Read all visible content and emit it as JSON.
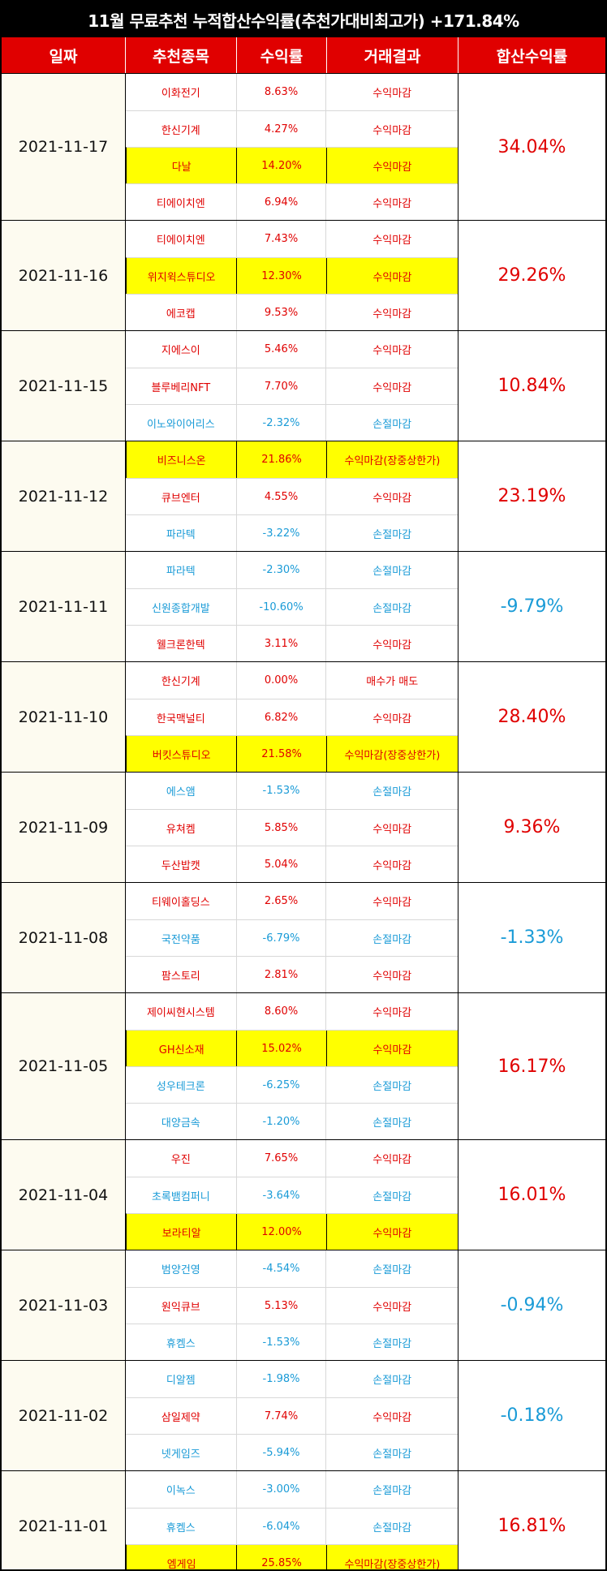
{
  "title": "11월 무료추천 누적합산수익률(추천가대비최고가) +171.84%",
  "headers": {
    "date": "일짜",
    "stock": "추천종목",
    "rate": "수익률",
    "result": "거래결과",
    "sum": "합산수익률"
  },
  "colors": {
    "header_bg": "#e00000",
    "positive": "#e00000",
    "negative": "#1a9bd7",
    "highlight": "#ffff00",
    "title_bg": "#000000"
  },
  "groups": [
    {
      "date": "2021-11-17",
      "sum": "34.04%",
      "sum_sign": "pos",
      "rows": [
        {
          "name": "이화전기",
          "rate": "8.63%",
          "result": "수익마감",
          "sign": "pos",
          "hl": false
        },
        {
          "name": "한신기계",
          "rate": "4.27%",
          "result": "수익마감",
          "sign": "pos",
          "hl": false
        },
        {
          "name": "다날",
          "rate": "14.20%",
          "result": "수익마감",
          "sign": "pos",
          "hl": true
        },
        {
          "name": "티에이치엔",
          "rate": "6.94%",
          "result": "수익마감",
          "sign": "pos",
          "hl": false
        }
      ]
    },
    {
      "date": "2021-11-16",
      "sum": "29.26%",
      "sum_sign": "pos",
      "rows": [
        {
          "name": "티에이치엔",
          "rate": "7.43%",
          "result": "수익마감",
          "sign": "pos",
          "hl": false
        },
        {
          "name": "위지윅스튜디오",
          "rate": "12.30%",
          "result": "수익마감",
          "sign": "pos",
          "hl": true
        },
        {
          "name": "에코캡",
          "rate": "9.53%",
          "result": "수익마감",
          "sign": "pos",
          "hl": false
        }
      ]
    },
    {
      "date": "2021-11-15",
      "sum": "10.84%",
      "sum_sign": "pos",
      "rows": [
        {
          "name": "지에스이",
          "rate": "5.46%",
          "result": "수익마감",
          "sign": "pos",
          "hl": false
        },
        {
          "name": "블루베리NFT",
          "rate": "7.70%",
          "result": "수익마감",
          "sign": "pos",
          "hl": false
        },
        {
          "name": "이노와이어리스",
          "rate": "-2.32%",
          "result": "손절마감",
          "sign": "neg",
          "hl": false
        }
      ]
    },
    {
      "date": "2021-11-12",
      "sum": "23.19%",
      "sum_sign": "pos",
      "rows": [
        {
          "name": "비즈니스온",
          "rate": "21.86%",
          "result": "수익마감(장중상한가)",
          "sign": "pos",
          "hl": true
        },
        {
          "name": "큐브엔터",
          "rate": "4.55%",
          "result": "수익마감",
          "sign": "pos",
          "hl": false
        },
        {
          "name": "파라텍",
          "rate": "-3.22%",
          "result": "손절마감",
          "sign": "neg",
          "hl": false
        }
      ]
    },
    {
      "date": "2021-11-11",
      "sum": "-9.79%",
      "sum_sign": "neg",
      "rows": [
        {
          "name": "파라텍",
          "rate": "-2.30%",
          "result": "손절마감",
          "sign": "neg",
          "hl": false
        },
        {
          "name": "신원종합개발",
          "rate": "-10.60%",
          "result": "손절마감",
          "sign": "neg",
          "hl": false
        },
        {
          "name": "웰크론한텍",
          "rate": "3.11%",
          "result": "수익마감",
          "sign": "pos",
          "hl": false
        }
      ]
    },
    {
      "date": "2021-11-10",
      "sum": "28.40%",
      "sum_sign": "pos",
      "rows": [
        {
          "name": "한신기계",
          "rate": "0.00%",
          "result": "매수가 매도",
          "sign": "pos",
          "hl": false
        },
        {
          "name": "한국맥널티",
          "rate": "6.82%",
          "result": "수익마감",
          "sign": "pos",
          "hl": false
        },
        {
          "name": "버킷스튜디오",
          "rate": "21.58%",
          "result": "수익마감(장중상한가)",
          "sign": "pos",
          "hl": true
        }
      ]
    },
    {
      "date": "2021-11-09",
      "sum": "9.36%",
      "sum_sign": "pos",
      "rows": [
        {
          "name": "에스앰",
          "rate": "-1.53%",
          "result": "손절마감",
          "sign": "neg",
          "hl": false
        },
        {
          "name": "유쳐켐",
          "rate": "5.85%",
          "result": "수익마감",
          "sign": "pos",
          "hl": false
        },
        {
          "name": "두산밥캣",
          "rate": "5.04%",
          "result": "수익마감",
          "sign": "pos",
          "hl": false
        }
      ]
    },
    {
      "date": "2021-11-08",
      "sum": "-1.33%",
      "sum_sign": "neg",
      "rows": [
        {
          "name": "티웨이홀딩스",
          "rate": "2.65%",
          "result": "수익마감",
          "sign": "pos",
          "hl": false
        },
        {
          "name": "국전약품",
          "rate": "-6.79%",
          "result": "손절마감",
          "sign": "neg",
          "hl": false
        },
        {
          "name": "팜스토리",
          "rate": "2.81%",
          "result": "수익마감",
          "sign": "pos",
          "hl": false
        }
      ]
    },
    {
      "date": "2021-11-05",
      "sum": "16.17%",
      "sum_sign": "pos",
      "rows": [
        {
          "name": "제이씨현시스템",
          "rate": "8.60%",
          "result": "수익마감",
          "sign": "pos",
          "hl": false
        },
        {
          "name": "GH신소재",
          "rate": "15.02%",
          "result": "수익마감",
          "sign": "pos",
          "hl": true
        },
        {
          "name": "성우테크론",
          "rate": "-6.25%",
          "result": "손절마감",
          "sign": "neg",
          "hl": false
        },
        {
          "name": "대양금속",
          "rate": "-1.20%",
          "result": "손절마감",
          "sign": "neg",
          "hl": false
        }
      ]
    },
    {
      "date": "2021-11-04",
      "sum": "16.01%",
      "sum_sign": "pos",
      "rows": [
        {
          "name": "우진",
          "rate": "7.65%",
          "result": "수익마감",
          "sign": "pos",
          "hl": false
        },
        {
          "name": "초록뱀컴퍼니",
          "rate": "-3.64%",
          "result": "손절마감",
          "sign": "neg",
          "hl": false
        },
        {
          "name": "보라티알",
          "rate": "12.00%",
          "result": "수익마감",
          "sign": "pos",
          "hl": true
        }
      ]
    },
    {
      "date": "2021-11-03",
      "sum": "-0.94%",
      "sum_sign": "neg",
      "rows": [
        {
          "name": "범양건영",
          "rate": "-4.54%",
          "result": "손절마감",
          "sign": "neg",
          "hl": false
        },
        {
          "name": "원익큐브",
          "rate": "5.13%",
          "result": "수익마감",
          "sign": "pos",
          "hl": false
        },
        {
          "name": "휴켐스",
          "rate": "-1.53%",
          "result": "손절마감",
          "sign": "neg",
          "hl": false
        }
      ]
    },
    {
      "date": "2021-11-02",
      "sum": "-0.18%",
      "sum_sign": "neg",
      "rows": [
        {
          "name": "디알젬",
          "rate": "-1.98%",
          "result": "손절마감",
          "sign": "neg",
          "hl": false
        },
        {
          "name": "삼일제약",
          "rate": "7.74%",
          "result": "수익마감",
          "sign": "pos",
          "hl": false
        },
        {
          "name": "넷게임즈",
          "rate": "-5.94%",
          "result": "손절마감",
          "sign": "neg",
          "hl": false
        }
      ]
    },
    {
      "date": "2021-11-01",
      "sum": "16.81%",
      "sum_sign": "pos",
      "rows": [
        {
          "name": "이녹스",
          "rate": "-3.00%",
          "result": "손절마감",
          "sign": "neg",
          "hl": false
        },
        {
          "name": "휴켐스",
          "rate": "-6.04%",
          "result": "손절마감",
          "sign": "neg",
          "hl": false
        },
        {
          "name": "엠게임",
          "rate": "25.85%",
          "result": "수익마감(장중상한가)",
          "sign": "pos",
          "hl": true
        }
      ]
    }
  ]
}
